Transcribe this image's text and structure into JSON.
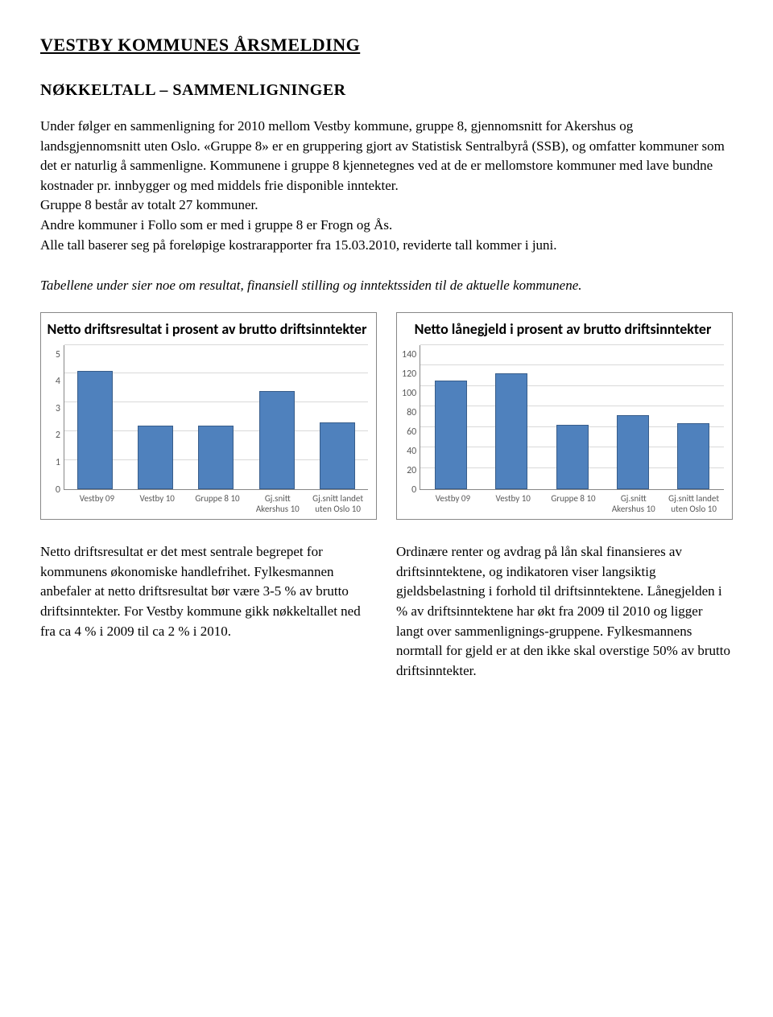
{
  "header": {
    "title": "VESTBY KOMMUNES ÅRSMELDING",
    "subtitle": "NØKKELTALL – SAMMENLIGNINGER"
  },
  "intro": {
    "p1": "Under følger en sammenligning for 2010 mellom Vestby kommune, gruppe 8, gjennomsnitt for Akershus og landsgjennomsnitt uten Oslo. «Gruppe 8» er en gruppering gjort av Statistisk Sentralbyrå (SSB), og omfatter kommuner som det er naturlig å sammenligne. Kommunene i gruppe 8 kjennetegnes ved at de er mellomstore kommuner med lave bundne kostnader pr. innbygger og med middels frie disponible inntekter.",
    "p2": "Gruppe 8 består av totalt 27 kommuner.",
    "p3": "Andre kommuner i Follo som er med i gruppe 8 er Frogn og Ås.",
    "p4": "Alle tall baserer seg på foreløpige kostrarapporter fra 15.03.2010, reviderte tall kommer i juni."
  },
  "summary": "Tabellene under sier noe om resultat, finansiell stilling og inntektssiden til de aktuelle kommunene.",
  "chart1": {
    "title": "Netto driftsresultat i prosent av brutto driftsinntekter",
    "ymax": 5,
    "ytick_step": 1,
    "bar_color": "#4f81bd",
    "bar_border": "#385d8a",
    "grid_color": "#d9d9d9",
    "categories": [
      "Vestby 09",
      "Vestby 10",
      "Gruppe 8 10",
      "Gj.snitt Akershus 10",
      "Gj.snitt landet uten Oslo 10"
    ],
    "values": [
      4.1,
      2.2,
      2.2,
      3.4,
      2.3
    ]
  },
  "chart2": {
    "title": "Netto lånegjeld i prosent av brutto driftsinntekter",
    "ymax": 140,
    "ytick_step": 20,
    "bar_color": "#4f81bd",
    "bar_border": "#385d8a",
    "grid_color": "#d9d9d9",
    "categories": [
      "Vestby 09",
      "Vestby 10",
      "Gruppe 8 10",
      "Gj.snitt Akershus 10",
      "Gj.snitt landet uten Oslo 10"
    ],
    "values": [
      105,
      112,
      62,
      72,
      64
    ]
  },
  "bottom": {
    "left": "Netto driftsresultat er det mest sentrale begrepet for kommunens økonomiske handlefrihet. Fylkesmannen anbefaler at netto driftsresultat bør være 3-5 % av brutto driftsinntekter. For Vestby kommune gikk nøkkeltallet ned fra ca 4 % i 2009 til ca 2 % i 2010.",
    "right": "Ordinære renter og avdrag på lån skal finansieres av driftsinntektene, og indikatoren viser langsiktig gjeldsbelastning i forhold til driftsinntektene. Lånegjelden i % av driftsinntektene har økt fra 2009 til 2010 og ligger langt over sammenlignings-gruppene. Fylkesmannens normtall for gjeld er at den ikke skal overstige 50% av brutto driftsinntekter."
  }
}
